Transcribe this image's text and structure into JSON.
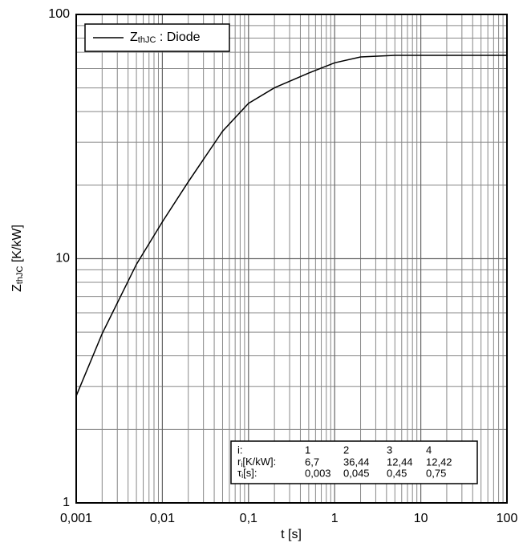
{
  "chart_data": {
    "type": "line",
    "xlabel": "t [s]",
    "ylabel_parts": [
      "Z",
      "thJC",
      " [K/kW]"
    ],
    "log_x": true,
    "log_y": true,
    "grid": true,
    "xlim": [
      0.001,
      100
    ],
    "ylim": [
      1,
      100
    ],
    "xticks": [
      {
        "value": 0.001,
        "label": "0,001"
      },
      {
        "value": 0.01,
        "label": "0,01"
      },
      {
        "value": 0.1,
        "label": "0,1"
      },
      1,
      10,
      100
    ],
    "yticks": [
      1,
      10,
      100
    ],
    "xminorticks": [
      0.002,
      0.003,
      0.004,
      0.005,
      0.006,
      0.007,
      0.008,
      0.009,
      0.02,
      0.03,
      0.04,
      0.05,
      0.06,
      0.07,
      0.08,
      0.09,
      0.2,
      0.3,
      0.4,
      0.5,
      0.6,
      0.7,
      0.8,
      0.9,
      2,
      3,
      4,
      5,
      6,
      7,
      8,
      9,
      20,
      30,
      40,
      50,
      60,
      70,
      80,
      90
    ],
    "yminorticks": [
      2,
      3,
      4,
      5,
      6,
      7,
      8,
      9,
      20,
      30,
      40,
      50,
      60,
      70,
      80,
      90
    ],
    "legend": "upper left",
    "series": [
      {
        "name_parts": [
          "Z",
          "thJC",
          " : Diode"
        ],
        "color": "#000000",
        "x": [
          0.001,
          0.002,
          0.005,
          0.01,
          0.02,
          0.05,
          0.1,
          0.2,
          0.5,
          1,
          2,
          5,
          10,
          20,
          50,
          100
        ],
        "values": [
          2.74,
          4.93,
          9.48,
          14.15,
          20.64,
          33.26,
          43.24,
          50.09,
          57.54,
          63.38,
          67.0,
          67.98,
          68.0,
          68.0,
          68.0,
          68.0
        ]
      }
    ],
    "parameter_table": {
      "header": "i:",
      "columns": [
        1,
        2,
        3,
        4
      ],
      "rows": [
        {
          "label_parts": [
            "r",
            "i",
            "[K/kW]:"
          ],
          "values": [
            "6,7",
            "36,44",
            "12,44",
            "12,42"
          ]
        },
        {
          "label_parts": [
            "τ",
            "i",
            "[s]:"
          ],
          "values": [
            "0,003",
            "0,045",
            "0,45",
            "0,75"
          ]
        }
      ]
    }
  }
}
